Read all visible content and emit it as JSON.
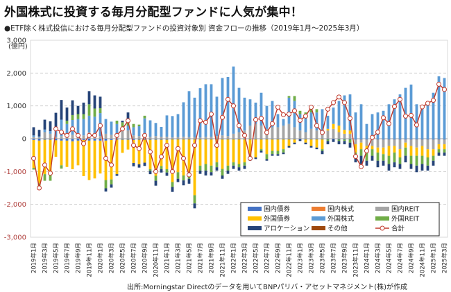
{
  "title": "外国株式に投資する毎月分配型ファンドに人気が集中！",
  "subtitle": "●ETF除く株式投信における毎月分配型ファンドの投資対象別 資金フローの推移（2019年1月～2025年3月）",
  "source": "出所:Morningstar Directのデータを用いてBNPパリバ・アセットマネジメント(株)が作成",
  "chart_data": {
    "type": "bar",
    "stacked": true,
    "title": "ETF除く株式投信における毎月分配型ファンドの投資対象別 資金フローの推移（2019年1月～2025年3月）",
    "xlabel": "",
    "ylabel": "(億円)",
    "ylim": [
      -3000,
      3000
    ],
    "yticks": [
      -3000,
      -2000,
      -1000,
      0,
      1000,
      2000,
      3000
    ],
    "ytick_labels": [
      "-3,000",
      "-2,000",
      "-1,000",
      "0",
      "1,000",
      "2,000",
      "3,000"
    ],
    "grid": true,
    "legend_position": "bottom-right",
    "colors": {
      "国内債券": "#4472c4",
      "国内株式": "#ed7d31",
      "国内REIT": "#a5a5a5",
      "外国債券": "#ffc000",
      "外国株式": "#5b9bd5",
      "外国REIT": "#70ad47",
      "アロケーション": "#264478",
      "その他": "#9e480e",
      "合計": "#c0392b"
    },
    "legend": [
      "国内債券",
      "国内株式",
      "国内REIT",
      "外国債券",
      "外国株式",
      "外国REIT",
      "アロケーション",
      "その他",
      "合計"
    ],
    "categories": [
      "2019年1月",
      "2019年2月",
      "2019年3月",
      "2019年4月",
      "2019年5月",
      "2019年6月",
      "2019年7月",
      "2019年8月",
      "2019年9月",
      "2019年10月",
      "2019年11月",
      "2019年12月",
      "2020年1月",
      "2020年2月",
      "2020年3月",
      "2020年4月",
      "2020年5月",
      "2020年6月",
      "2020年7月",
      "2020年8月",
      "2020年9月",
      "2020年10月",
      "2020年11月",
      "2020年12月",
      "2021年1月",
      "2021年2月",
      "2021年3月",
      "2021年4月",
      "2021年5月",
      "2021年6月",
      "2021年7月",
      "2021年8月",
      "2021年9月",
      "2021年10月",
      "2021年11月",
      "2021年12月",
      "2022年1月",
      "2022年2月",
      "2022年3月",
      "2022年4月",
      "2022年5月",
      "2022年6月",
      "2022年7月",
      "2022年8月",
      "2022年9月",
      "2022年10月",
      "2022年11月",
      "2022年12月",
      "2023年1月",
      "2023年2月",
      "2023年3月",
      "2023年4月",
      "2023年5月",
      "2023年6月",
      "2023年7月",
      "2023年8月",
      "2023年9月",
      "2023年10月",
      "2023年11月",
      "2023年12月",
      "2024年1月",
      "2024年2月",
      "2024年3月",
      "2024年4月",
      "2024年5月",
      "2024年6月",
      "2024年7月",
      "2024年8月",
      "2024年9月",
      "2024年10月",
      "2024年11月",
      "2024年12月",
      "2025年1月",
      "2025年2月",
      "2025年3月"
    ],
    "xtick_labels": [
      "2019年1月",
      "2019年3月",
      "2019年5月",
      "2019年7月",
      "2019年9月",
      "2019年11月",
      "2020年1月",
      "2020年3月",
      "2020年5月",
      "2020年7月",
      "2020年9月",
      "2020年11月",
      "2021年1月",
      "2021年3月",
      "2021年5月",
      "2021年7月",
      "2021年9月",
      "2021年11月",
      "2022年1月",
      "2022年3月",
      "2022年5月",
      "2022年7月",
      "2022年9月",
      "2022年11月",
      "2023年1月",
      "2023年3月",
      "2023年5月",
      "2023年7月",
      "2023年9月",
      "2023年11月",
      "2024年1月",
      "2024年3月",
      "2024年5月",
      "2024年7月",
      "2024年9月",
      "2024年11月",
      "2025年1月",
      "2025年3月"
    ],
    "series": [
      {
        "name": "国内債券",
        "values": [
          -40,
          -60,
          -30,
          -30,
          -50,
          -60,
          -60,
          -80,
          -60,
          -40,
          -60,
          -60,
          -60,
          -60,
          -40,
          -30,
          -30,
          -30,
          -40,
          -30,
          -30,
          -30,
          -30,
          -30,
          -30,
          -20,
          -20,
          -20,
          -20,
          -20,
          -20,
          -20,
          -20,
          -20,
          -20,
          -20,
          -20,
          -20,
          -20,
          -20,
          -20,
          -20,
          -20,
          -20,
          -20,
          -20,
          -20,
          -20,
          -20,
          -20,
          -20,
          -20,
          -20,
          -20,
          -20,
          -20,
          -20,
          -20,
          -20,
          -20,
          -20,
          -20,
          -20,
          -20,
          -20,
          -20,
          -20,
          -20,
          -20,
          -20,
          -20,
          -20,
          -20,
          -20,
          -20
        ]
      },
      {
        "name": "国内株式",
        "values": [
          0,
          0,
          0,
          0,
          0,
          0,
          0,
          0,
          0,
          0,
          0,
          0,
          0,
          0,
          0,
          0,
          0,
          0,
          0,
          0,
          0,
          0,
          0,
          0,
          0,
          0,
          0,
          0,
          0,
          0,
          0,
          0,
          0,
          0,
          0,
          0,
          0,
          0,
          0,
          0,
          0,
          0,
          0,
          0,
          0,
          0,
          0,
          0,
          0,
          0,
          0,
          0,
          0,
          0,
          0,
          0,
          0,
          0,
          0,
          0,
          0,
          0,
          0,
          0,
          0,
          0,
          0,
          0,
          0,
          0,
          0,
          0,
          0,
          0,
          0
        ]
      },
      {
        "name": "国内REIT",
        "values": [
          50,
          40,
          200,
          150,
          60,
          80,
          100,
          120,
          150,
          100,
          200,
          120,
          80,
          150,
          120,
          150,
          250,
          250,
          100,
          80,
          120,
          60,
          80,
          60,
          60,
          40,
          50,
          60,
          50,
          50,
          40,
          60,
          60,
          80,
          100,
          80,
          150,
          200,
          250,
          400,
          450,
          400,
          300,
          350,
          350,
          400,
          450,
          350,
          250,
          200,
          300,
          250,
          200,
          250,
          300,
          200,
          150,
          150,
          -150,
          -100,
          -200,
          -200,
          -250,
          -250,
          -200,
          -200,
          -300,
          -100,
          -200,
          -250,
          -200,
          -300,
          -300,
          -150,
          -150
        ]
      },
      {
        "name": "外国債券",
        "values": [
          -850,
          -1300,
          -1050,
          -1000,
          -500,
          -750,
          -800,
          -850,
          -750,
          -1100,
          -1200,
          -1150,
          -1000,
          -1200,
          -1200,
          -1050,
          -400,
          -300,
          -700,
          -750,
          -700,
          -900,
          -1100,
          -800,
          -900,
          -1300,
          -1000,
          -1100,
          -1000,
          -1700,
          -800,
          -750,
          -800,
          -700,
          -900,
          -800,
          -700,
          -750,
          -700,
          -500,
          -550,
          -300,
          -450,
          -350,
          -350,
          -300,
          -200,
          -100,
          0,
          -100,
          -200,
          -250,
          -300,
          50,
          150,
          200,
          120,
          100,
          -250,
          -200,
          -150,
          -100,
          -150,
          -200,
          -300,
          -200,
          -250,
          -150,
          -300,
          -250,
          -300,
          -250,
          -200,
          -150,
          -150
        ]
      },
      {
        "name": "外国株式",
        "values": [
          50,
          30,
          80,
          80,
          250,
          500,
          350,
          450,
          450,
          500,
          500,
          550,
          700,
          450,
          400,
          300,
          100,
          150,
          250,
          300,
          500,
          500,
          400,
          300,
          650,
          650,
          700,
          1050,
          1400,
          1200,
          1500,
          1600,
          1600,
          1200,
          1750,
          1800,
          2050,
          1350,
          1000,
          800,
          650,
          1000,
          700,
          800,
          400,
          200,
          800,
          800,
          500,
          550,
          500,
          550,
          700,
          400,
          500,
          750,
          1050,
          1100,
          800,
          1050,
          450,
          750,
          800,
          850,
          1050,
          1200,
          1350,
          1550,
          1650,
          1050,
          1000,
          1050,
          1400,
          1900,
          1850
        ]
      },
      {
        "name": "外国REIT",
        "values": [
          -50,
          -200,
          -200,
          -250,
          30,
          -100,
          100,
          150,
          150,
          150,
          350,
          250,
          150,
          -250,
          -150,
          100,
          150,
          200,
          100,
          50,
          80,
          -50,
          -150,
          -100,
          -100,
          -150,
          -200,
          -150,
          -200,
          -250,
          -150,
          -200,
          -200,
          -150,
          -200,
          -150,
          -100,
          -100,
          -100,
          -100,
          0,
          -50,
          -150,
          -100,
          -100,
          -100,
          50,
          150,
          100,
          50,
          150,
          100,
          -50,
          -50,
          0,
          -50,
          -50,
          -100,
          -100,
          -200,
          -300,
          -200,
          -250,
          -200,
          -250,
          -300,
          -200,
          -250,
          -250,
          -300,
          -250,
          -250,
          -150,
          -100,
          -100
        ]
      },
      {
        "name": "アロケーション",
        "values": [
          250,
          200,
          300,
          300,
          450,
          600,
          400,
          450,
          250,
          350,
          400,
          400,
          350,
          -100,
          -100,
          -50,
          50,
          200,
          -100,
          -100,
          -100,
          -100,
          -150,
          -100,
          -100,
          -150,
          -100,
          -150,
          -150,
          -150,
          -100,
          -150,
          -100,
          -100,
          -100,
          -100,
          -100,
          -100,
          -100,
          -50,
          -50,
          -50,
          -50,
          -50,
          -50,
          -50,
          -50,
          -50,
          -50,
          -50,
          -50,
          -50,
          -100,
          -100,
          -80,
          -100,
          -100,
          -150,
          -200,
          -250,
          -150,
          -150,
          -200,
          -150,
          -200,
          -150,
          -150,
          -200,
          -150,
          -200,
          -200,
          -150,
          -150,
          -100,
          -100
        ]
      },
      {
        "name": "その他",
        "values": [
          0,
          0,
          0,
          0,
          0,
          0,
          0,
          0,
          0,
          0,
          0,
          0,
          0,
          0,
          0,
          0,
          0,
          0,
          0,
          0,
          0,
          0,
          0,
          0,
          0,
          0,
          0,
          0,
          0,
          0,
          0,
          0,
          0,
          0,
          0,
          0,
          0,
          0,
          0,
          0,
          0,
          0,
          0,
          0,
          0,
          0,
          0,
          0,
          0,
          0,
          0,
          0,
          0,
          0,
          0,
          0,
          0,
          0,
          0,
          0,
          0,
          0,
          0,
          0,
          0,
          0,
          0,
          0,
          0,
          0,
          0,
          0,
          0,
          0,
          0
        ]
      }
    ],
    "total": {
      "name": "合計",
      "values": [
        -600,
        -1500,
        -800,
        -1050,
        300,
        200,
        100,
        300,
        100,
        -150,
        100,
        100,
        400,
        -600,
        -800,
        100,
        300,
        550,
        -200,
        -300,
        100,
        -400,
        -1000,
        -550,
        -200,
        -1000,
        -300,
        -600,
        -1100,
        -200,
        550,
        500,
        750,
        -200,
        650,
        1200,
        1000,
        400,
        100,
        -600,
        580,
        620,
        190,
        460,
        960,
        730,
        750,
        850,
        560,
        690,
        960,
        400,
        190,
        900,
        1100,
        1270,
        1100,
        620,
        -540,
        -850,
        -370,
        40,
        200,
        640,
        460,
        980,
        1200,
        690,
        710,
        420,
        970,
        1080,
        1170,
        1660,
        1500
      ]
    }
  }
}
